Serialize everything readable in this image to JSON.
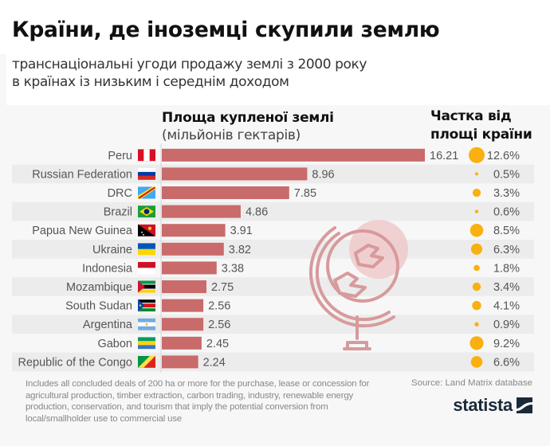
{
  "header": {
    "title": "Країни, де іноземці скупили землю",
    "subtitle_line1": "транснаціональні угоди продажу землі з 2000 року",
    "subtitle_line2": "в країнах із низьким і середнім доходом"
  },
  "columns": {
    "bars_title": "Площа купленої землі",
    "bars_unit": "(мільйонів гектарів)",
    "share_title_line1": "Частка від",
    "share_title_line2": "площі країни"
  },
  "colors": {
    "bar": "#c96a6b",
    "dot": "#f9b010",
    "stripe": "#ececec",
    "globe": "#d89a9c",
    "globe_fill": "#f0c9cb"
  },
  "chart_data": {
    "type": "bar",
    "orientation": "horizontal",
    "title": "Площа купленої землі",
    "xlabel": "мільйонів гектарів",
    "ylabel": "",
    "xlim": [
      0,
      16.21
    ],
    "grid": false,
    "categories": [
      "Peru",
      "Russian Federation",
      "DRC",
      "Brazil",
      "Papua New Guinea",
      "Ukraine",
      "Indonesia",
      "Mozambique",
      "South Sudan",
      "Argentina",
      "Gabon",
      "Republic of the Congo"
    ],
    "flags": [
      "peru-flag",
      "russia-flag",
      "drc-flag",
      "brazil-flag",
      "png-flag",
      "ukraine-flag",
      "indonesia-flag",
      "mozambique-flag",
      "south-sudan-flag",
      "argentina-flag",
      "gabon-flag",
      "congo-flag"
    ],
    "series": [
      {
        "name": "Площа купленої землі (млн га)",
        "values": [
          16.21,
          8.96,
          7.85,
          4.86,
          3.91,
          3.82,
          3.38,
          2.75,
          2.56,
          2.56,
          2.45,
          2.24
        ]
      },
      {
        "name": "Частка від площі країни (%)",
        "values": [
          12.6,
          0.5,
          3.3,
          0.6,
          8.5,
          6.3,
          1.8,
          3.4,
          4.1,
          0.9,
          9.2,
          6.6
        ]
      }
    ],
    "value_labels": [
      "16.21",
      "8.96",
      "7.85",
      "4.86",
      "3.91",
      "3.82",
      "3.38",
      "2.75",
      "2.56",
      "2.56",
      "2.45",
      "2.24"
    ],
    "share_labels": [
      "12.6%",
      "0.5%",
      "3.3%",
      "0.6%",
      "8.5%",
      "6.3%",
      "1.8%",
      "3.4%",
      "4.1%",
      "0.9%",
      "9.2%",
      "6.6%"
    ]
  },
  "footer": {
    "note": "Includes all concluded deals of 200 ha or more for the purchase, lease or concession for agricultural production, timber extraction, carbon trading, industry, renewable energy production, conservation, and tourism that imply the potential conversion from local/smallholder use to commercial use",
    "source": "Source: Land Matrix database",
    "logo_text": "statista"
  }
}
